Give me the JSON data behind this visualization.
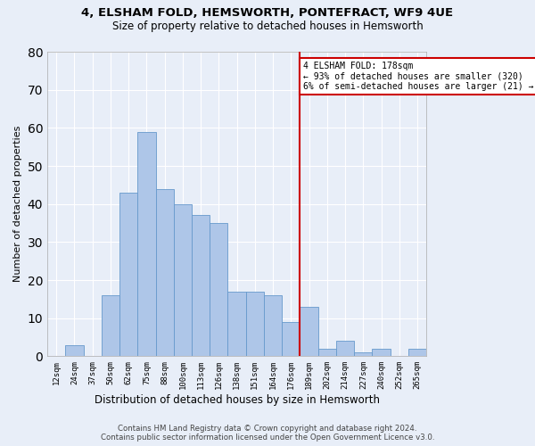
{
  "title_line1": "4, ELSHAM FOLD, HEMSWORTH, PONTEFRACT, WF9 4UE",
  "title_line2": "Size of property relative to detached houses in Hemsworth",
  "xlabel": "Distribution of detached houses by size in Hemsworth",
  "ylabel": "Number of detached properties",
  "bar_labels": [
    "12sqm",
    "24sqm",
    "37sqm",
    "50sqm",
    "62sqm",
    "75sqm",
    "88sqm",
    "100sqm",
    "113sqm",
    "126sqm",
    "138sqm",
    "151sqm",
    "164sqm",
    "176sqm",
    "189sqm",
    "202sqm",
    "214sqm",
    "227sqm",
    "240sqm",
    "252sqm",
    "265sqm"
  ],
  "bar_heights": [
    0,
    3,
    0,
    16,
    43,
    59,
    44,
    40,
    37,
    35,
    17,
    17,
    16,
    9,
    13,
    2,
    4,
    1,
    2,
    0,
    2
  ],
  "bar_color": "#aec6e8",
  "bar_edgecolor": "#6699cc",
  "background_color": "#e8eef8",
  "grid_color": "#ffffff",
  "vline_color": "#cc0000",
  "ylim": [
    0,
    80
  ],
  "yticks": [
    0,
    10,
    20,
    30,
    40,
    50,
    60,
    70,
    80
  ],
  "annotation_text": "4 ELSHAM FOLD: 178sqm\n← 93% of detached houses are smaller (320)\n6% of semi-detached houses are larger (21) →",
  "annotation_box_color": "#ffffff",
  "annotation_border_color": "#cc0000",
  "footer_line1": "Contains HM Land Registry data © Crown copyright and database right 2024.",
  "footer_line2": "Contains public sector information licensed under the Open Government Licence v3.0."
}
